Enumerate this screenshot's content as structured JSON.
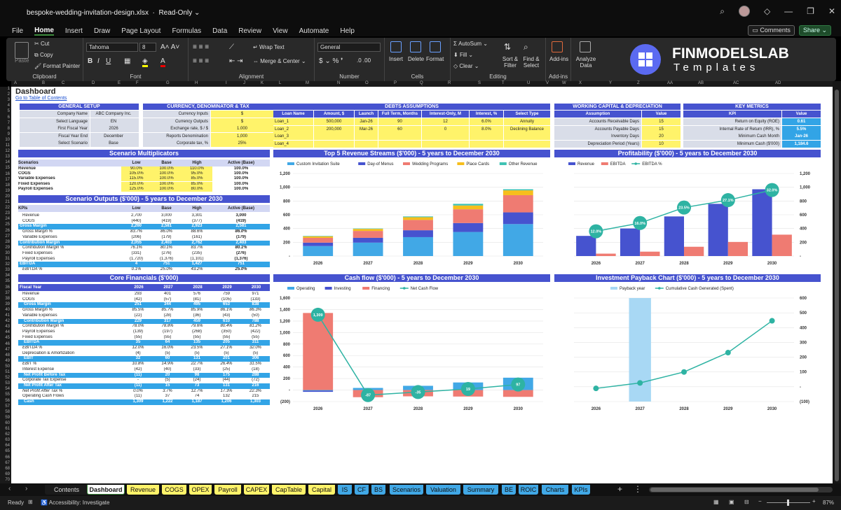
{
  "window": {
    "filename": "bespoke-wedding-invitation-design.xlsx",
    "mode": "Read-Only"
  },
  "menu": {
    "items": [
      "File",
      "Home",
      "Insert",
      "Draw",
      "Page Layout",
      "Formulas",
      "Data",
      "Review",
      "View",
      "Automate",
      "Help"
    ],
    "active": "Home",
    "comments": "Comments",
    "share": "Share"
  },
  "ribbon": {
    "paste": "Paste",
    "cut": "Cut",
    "copy": "Copy",
    "format_painter": "Format Painter",
    "clipboard": "Clipboard",
    "font_name": "Tahoma",
    "font_size": "8",
    "font": "Font",
    "wrap_text": "Wrap Text",
    "merge_center": "Merge & Center",
    "alignment": "Alignment",
    "number_format": "General",
    "number": "Number",
    "insert": "Insert",
    "delete": "Delete",
    "format": "Format",
    "cells": "Cells",
    "autosum": "AutoSum",
    "fill": "Fill",
    "clear": "Clear",
    "sort_filter": "Sort & Filter",
    "find_select": "Find & Select",
    "editing": "Editing",
    "add_ins": "Add-ins",
    "analyze_data": "Analyze Data"
  },
  "logo": {
    "line1": "FINMODELSLAB",
    "line2": "Templates"
  },
  "columns": [
    "A",
    "B",
    "C",
    "D",
    "E",
    "F",
    "G",
    "H",
    "I",
    "J",
    "K",
    "L",
    "M",
    "N",
    "O",
    "P",
    "Q",
    "R",
    "S",
    "T",
    "U",
    "V",
    "W",
    "X",
    "Y",
    "Z",
    "AA",
    "AB",
    "AC",
    "AD"
  ],
  "dashboard": {
    "title": "Dashboard",
    "toc_link": "Go to Table of Contents"
  },
  "general_setup": {
    "header": "GENERAL SETUP",
    "rows": [
      [
        "Company Name",
        "ABC Company Inc."
      ],
      [
        "Select Language",
        "EN"
      ],
      [
        "First Fiscal Year",
        "2026"
      ],
      [
        "Fiscal Year End",
        "December"
      ],
      [
        "Select Scenario",
        "Base"
      ]
    ]
  },
  "currency": {
    "header": "CURRENCY, DENOMINATOR & TAX",
    "rows": [
      [
        "Currency Inputs",
        "$"
      ],
      [
        "Currency Outputs",
        "$"
      ],
      [
        "Exchange rate, $ / $",
        "1.000"
      ],
      [
        "Reports Denomination",
        "1,000"
      ],
      [
        "Corporate tax, %",
        "25%"
      ]
    ]
  },
  "debts": {
    "header": "DEBTS ASSUMPTIONS",
    "cols": [
      "Loan Name",
      "Amount, $",
      "Launch",
      "Full Term, Months",
      "Interest-Only, M",
      "Interest, %",
      "Select Type"
    ],
    "rows": [
      [
        "Loan_1",
        "500,000",
        "Jan-26",
        "90",
        "12",
        "6.0%",
        "Annuity"
      ],
      [
        "Loan_2",
        "200,000",
        "Mar-26",
        "60",
        "0",
        "8.0%",
        "Declining Balance"
      ],
      [
        "Loan_3",
        "",
        "",
        "",
        "",
        "",
        ""
      ],
      [
        "Loan_4",
        "",
        "",
        "",
        "",
        "",
        ""
      ]
    ]
  },
  "working_capital": {
    "header": "WORKING CAPITAL & DEPRECIATION",
    "cols": [
      "Assumption",
      "Value"
    ],
    "rows": [
      [
        "Accounts Receivable Days",
        "15"
      ],
      [
        "Accounts Payable Days",
        "15"
      ],
      [
        "Inventory Days",
        "20"
      ],
      [
        "Depreciation Period (Years)",
        "10"
      ]
    ]
  },
  "key_metrics": {
    "header": "KEY METRICS",
    "cols": [
      "KPI",
      "Value"
    ],
    "rows": [
      [
        "Return on Equity (ROE)",
        "0.61"
      ],
      [
        "Internal Rate of Return (IRR), %",
        "5.5%"
      ],
      [
        "Minimum Cash Month",
        "Jan-26"
      ],
      [
        "Minimum Cash ($'000)",
        "1,184.6"
      ]
    ]
  },
  "scenario_mult": {
    "header": "Scenario Multiplicators",
    "cols": [
      "Scenarios",
      "Low",
      "Base",
      "High",
      "Active (Base)"
    ],
    "rows": [
      [
        "Revenue",
        "90.0%",
        "100.0%",
        "110.0%",
        "100.0%"
      ],
      [
        "COGS",
        "105.0%",
        "100.0%",
        "95.0%",
        "100.0%"
      ],
      [
        "Variable Expenses",
        "115.0%",
        "100.0%",
        "85.0%",
        "100.0%"
      ],
      [
        "Fixed Expenses",
        "120.0%",
        "100.0%",
        "85.0%",
        "100.0%"
      ],
      [
        "Payroll Expenses",
        "125.0%",
        "100.0%",
        "80.0%",
        "100.0%"
      ]
    ]
  },
  "scenario_out": {
    "header": "Scenario Outputs ($'000) - 5 years to December 2030",
    "cols": [
      "KPIs",
      "Low",
      "Base",
      "High",
      "Active (Base)"
    ],
    "rows": [
      [
        "Revenue",
        "2,700",
        "3,000",
        "3,301",
        "3,000",
        "n"
      ],
      [
        "COGS",
        "(440)",
        "(419)",
        "(377)",
        "(419)",
        "n"
      ],
      [
        "Gross Margin",
        "2,260",
        "2,581",
        "2,923",
        "2,581",
        "h"
      ],
      [
        "Gross Margin %",
        "83.7%",
        "86.0%",
        "88.6%",
        "86.0%",
        "i"
      ],
      [
        "Variable Expenses",
        "(206)",
        "(179)",
        "(161)",
        "(179)",
        "n"
      ],
      [
        "Contribution Margin",
        "2,055",
        "2,403",
        "2,762",
        "2,403",
        "h"
      ],
      [
        "Contribution Margin %",
        "76.1%",
        "80.1%",
        "83.7%",
        "80.1%",
        "i"
      ],
      [
        "Fixed Expenses",
        "(331)",
        "(276)",
        "(235)",
        "(276)",
        "n"
      ],
      [
        "Payroll Expenses",
        "(1,720)",
        "(1,376)",
        "(1,101)",
        "(1,376)",
        "n"
      ],
      [
        "EBITDA",
        "4",
        "751",
        "1,427",
        "751",
        "h"
      ],
      [
        "EBITDA %",
        "0.1%",
        "25.0%",
        "43.2%",
        "25.0%",
        "i"
      ]
    ]
  },
  "core_fin": {
    "header": "Core Financials ($'000)",
    "cols": [
      "Fiscal Year",
      "2026",
      "2027",
      "2028",
      "2029",
      "2030"
    ],
    "rows": [
      [
        "Revenue",
        "293",
        "401",
        "576",
        "759",
        "971",
        "n"
      ],
      [
        "COGS",
        "(42)",
        "(57)",
        "(81)",
        "(105)",
        "(133)",
        "n"
      ],
      [
        "Gross Margin",
        "251",
        "344",
        "495",
        "653",
        "838",
        "h"
      ],
      [
        "Gross Margin %",
        "85.5%",
        "85.7%",
        "85.9%",
        "86.1%",
        "86.3%",
        "i"
      ],
      [
        "Variable Expenses",
        "(22)",
        "(28)",
        "(36)",
        "(43)",
        "(50)",
        "n"
      ],
      [
        "Contribution Margin",
        "229",
        "317",
        "459",
        "610",
        "788",
        "h"
      ],
      [
        "Contribution Margin %",
        "78.0%",
        "78.8%",
        "79.6%",
        "80.4%",
        "81.2%",
        "i"
      ],
      [
        "Payroll Expenses",
        "(139)",
        "(197)",
        "(268)",
        "(350)",
        "(422)",
        "n"
      ],
      [
        "Fixed Expenses",
        "(55)",
        "(55)",
        "(55)",
        "(55)",
        "(55)",
        "n"
      ],
      [
        "EBITDA",
        "35",
        "64",
        "135",
        "205",
        "311",
        "h"
      ],
      [
        "EBITDA %",
        "12.0%",
        "16.0%",
        "23.5%",
        "27.1%",
        "32.0%",
        "i"
      ],
      [
        "Depreciation & Amortization",
        "(4)",
        "(5)",
        "(5)",
        "(5)",
        "(5)",
        "n"
      ],
      [
        "EBIT",
        "32",
        "60",
        "131",
        "201",
        "306",
        "h"
      ],
      [
        "EBIT %",
        "10.8%",
        "14.9%",
        "22.7%",
        "26.4%",
        "31.5%",
        "i"
      ],
      [
        "Interest Expense",
        "(42)",
        "(40)",
        "(33)",
        "(25)",
        "(18)",
        "n"
      ],
      [
        "Net Profit Before Tax",
        "(11)",
        "20",
        "98",
        "175",
        "288",
        "h"
      ],
      [
        "Corporate Tax Expense",
        "-",
        "(5)",
        "(24)",
        "(44)",
        "(72)",
        "n"
      ],
      [
        "Net Profit After Tax",
        "(11)",
        "15",
        "73",
        "131",
        "216",
        "h"
      ],
      [
        "Net Profit After Tax %",
        "0.0%",
        "3.7%",
        "12.7%",
        "17.3%",
        "22.3%",
        "i"
      ],
      [
        "Operating Cash Flows",
        "(11)",
        "37",
        "74",
        "132",
        "215",
        "n"
      ],
      [
        "Cash",
        "1,309",
        "1,222",
        "1,187",
        "1,206",
        "1,303",
        "h"
      ]
    ]
  },
  "charts": [
    {
      "type": "bar",
      "title": "Top 5 Revenue Streams ($'000) - 5 years to December 2030",
      "categories": [
        "2026",
        "2027",
        "2028",
        "2029",
        "2030"
      ],
      "series": [
        {
          "name": "Custom Invitation Suite",
          "color": "#41a8e6",
          "values": [
            145,
            195,
            275,
            350,
            465
          ]
        },
        {
          "name": "Day-of Menus",
          "color": "#4653cf",
          "values": [
            50,
            70,
            100,
            130,
            170
          ]
        },
        {
          "name": "Wedding Programs",
          "color": "#ef7b72",
          "values": [
            70,
            100,
            150,
            200,
            250
          ]
        },
        {
          "name": "Place Cards",
          "color": "#f6be1c",
          "values": [
            22,
            30,
            40,
            55,
            70
          ]
        },
        {
          "name": "Other Revenue",
          "color": "#3fc2b4",
          "values": [
            6,
            6,
            11,
            24,
            16
          ]
        }
      ],
      "yticks": [
        "-",
        "200",
        "400",
        "600",
        "800",
        "1,000",
        "1,200"
      ],
      "ylim": [
        0,
        1200
      ]
    },
    {
      "type": "bar+line",
      "title": "Profitability ($'000) - 5 years to December 2030",
      "categories": [
        "2026",
        "2027",
        "2028",
        "2029",
        "2030"
      ],
      "series": [
        {
          "name": "Revenue",
          "color": "#4653cf",
          "values": [
            293,
            401,
            576,
            759,
            971
          ]
        },
        {
          "name": "EBITDA",
          "color": "#ef7b72",
          "values": [
            35,
            64,
            135,
            205,
            311
          ]
        },
        {
          "name": "EBITDA %",
          "color": "#2eb3a3",
          "values": [
            12.0,
            16.0,
            23.5,
            27.1,
            32.0
          ],
          "labels": [
            "12.0%",
            "16.0%",
            "23.5%",
            "27.1%",
            "32.0%"
          ]
        }
      ],
      "yticks": [
        "-",
        "200",
        "400",
        "600",
        "800",
        "1,000",
        "1,200"
      ],
      "ylim": [
        0,
        1200
      ],
      "y2lim": [
        0,
        40
      ]
    },
    {
      "type": "bar+line",
      "title": "Cash flow ($'000) - 5 years to December 2030",
      "categories": [
        "2026",
        "2027",
        "2028",
        "2029",
        "2030"
      ],
      "series": [
        {
          "name": "Operating",
          "color": "#41a8e6",
          "values": [
            -11,
            37,
            74,
            132,
            215
          ]
        },
        {
          "name": "Investing",
          "color": "#4653cf",
          "values": [
            -20,
            0,
            0,
            0,
            0
          ]
        },
        {
          "name": "Financing",
          "color": "#ef7b72",
          "values": [
            1340,
            -124,
            -109,
            -113,
            -118
          ]
        },
        {
          "name": "Net Cash Flow",
          "color": "#2eb3a3",
          "values": [
            1309,
            -87,
            -35,
            19,
            97
          ],
          "labels": [
            "1,309",
            "-87",
            "-35",
            "19",
            "97"
          ]
        }
      ],
      "yticks": [
        "(200)",
        "-",
        "200",
        "400",
        "600",
        "800",
        "1,000",
        "1,200",
        "1,400",
        "1,600"
      ],
      "ylim": [
        -200,
        1600
      ]
    },
    {
      "type": "bar+line",
      "title": "Investment Payback Chart ($'000) - 5 years to December 2030",
      "categories": [
        "2026",
        "2027",
        "2028",
        "2029",
        "2030"
      ],
      "series": [
        {
          "name": "Payback year",
          "color": "#a8d8f4",
          "values": [
            0,
            1,
            0,
            0,
            0
          ]
        },
        {
          "name": "Cumulative Cash Generated (Spent)",
          "color": "#2eb3a3",
          "values": [
            -11,
            26,
            100,
            231,
            446
          ]
        }
      ],
      "yticks": [
        "(100)",
        "-",
        "100",
        "200",
        "300",
        "400",
        "500",
        "600"
      ],
      "ylim": [
        -100,
        600
      ]
    }
  ],
  "sheet_tabs": [
    {
      "label": "Contents",
      "color": "#1b1b1b",
      "text": "#ddd"
    },
    {
      "label": "Dashboard",
      "color": "#ffffff",
      "text": "#111",
      "active": true
    },
    {
      "label": "Revenue",
      "color": "#fff36a"
    },
    {
      "label": "COGS",
      "color": "#fff36a"
    },
    {
      "label": "OPEX",
      "color": "#fff36a"
    },
    {
      "label": "Payroll",
      "color": "#fff36a"
    },
    {
      "label": "CAPEX",
      "color": "#fff36a"
    },
    {
      "label": "CapTable",
      "color": "#fff36a"
    },
    {
      "label": "Capital",
      "color": "#fff36a"
    },
    {
      "label": "IS",
      "color": "#41a8e6"
    },
    {
      "label": "CF",
      "color": "#41a8e6"
    },
    {
      "label": "BS",
      "color": "#41a8e6"
    },
    {
      "label": "Scenarios",
      "color": "#41a8e6"
    },
    {
      "label": "Valuation",
      "color": "#41a8e6"
    },
    {
      "label": "Summary",
      "color": "#41a8e6"
    },
    {
      "label": "BE",
      "color": "#41a8e6"
    },
    {
      "label": "ROIC",
      "color": "#41a8e6"
    },
    {
      "label": "Charts",
      "color": "#41a8e6"
    },
    {
      "label": "KPIs",
      "color": "#41a8e6"
    }
  ],
  "status": {
    "ready": "Ready",
    "accessibility": "Accessibility: Investigate",
    "zoom": "87%"
  }
}
